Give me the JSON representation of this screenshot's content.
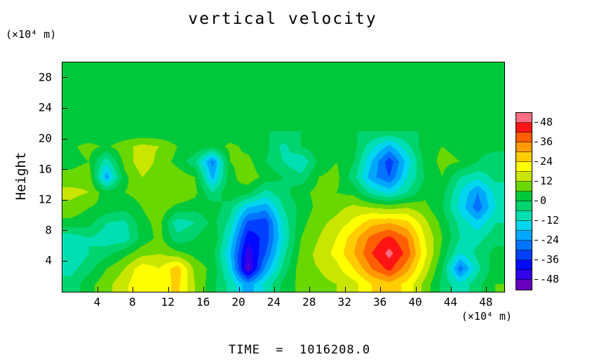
{
  "title": "vertical velocity",
  "time_label": "TIME  =  1016208.0",
  "y_axis": {
    "label": "Height",
    "unit": "(×10⁴ m)",
    "ticks": [
      4,
      8,
      12,
      16,
      20,
      24,
      28
    ],
    "range": [
      0,
      30
    ]
  },
  "x_axis": {
    "unit": "(×10⁴ m)",
    "ticks": [
      4,
      8,
      12,
      16,
      20,
      24,
      28,
      32,
      36,
      40,
      44,
      48
    ],
    "range": [
      0,
      50
    ]
  },
  "colorbar": {
    "ticks": [
      48,
      36,
      24,
      12,
      0,
      -12,
      -24,
      -36,
      -48
    ],
    "range": [
      -54,
      54
    ],
    "level_step": 6,
    "stops": [
      [
        -54,
        "#8200A0"
      ],
      [
        -48,
        "#5000DC"
      ],
      [
        -40,
        "#0000FF"
      ],
      [
        -30,
        "#005AFF"
      ],
      [
        -20,
        "#00AFFF"
      ],
      [
        -13,
        "#00E6E6"
      ],
      [
        -7,
        "#00DC96"
      ],
      [
        -2,
        "#00D264"
      ],
      [
        3,
        "#00C83C"
      ],
      [
        9,
        "#69D700"
      ],
      [
        15,
        "#C8E600"
      ],
      [
        21,
        "#FFFF00"
      ],
      [
        27,
        "#FFCD00"
      ],
      [
        33,
        "#FF9B00"
      ],
      [
        39,
        "#FF5F00"
      ],
      [
        45,
        "#FF1414"
      ],
      [
        51,
        "#FF6E82"
      ],
      [
        54,
        "#FAA5B9"
      ]
    ]
  },
  "chart_data": {
    "type": "heatmap",
    "title": "vertical velocity",
    "xlabel": "(×10⁴ m)",
    "ylabel": "Height (×10⁴ m)",
    "x_range": [
      0,
      50
    ],
    "height_range": [
      0,
      30
    ],
    "value_range": [
      -54,
      54
    ],
    "uniform_above_height": 20,
    "uniform_value": 0,
    "x": [
      1,
      3,
      5,
      7,
      9,
      11,
      13,
      15,
      17,
      19,
      21,
      23,
      25,
      27,
      29,
      31,
      33,
      35,
      37,
      39,
      41,
      43,
      45,
      47,
      49
    ],
    "height": [
      1,
      3,
      5,
      7,
      9,
      11,
      13,
      15,
      17,
      19
    ],
    "values": [
      [
        -4,
        4,
        10,
        16,
        24,
        20,
        26,
        12,
        2,
        -8,
        -22,
        -10,
        2,
        8,
        10,
        12,
        16,
        24,
        28,
        22,
        10,
        -2,
        -10,
        -2,
        6
      ],
      [
        -8,
        -2,
        6,
        12,
        22,
        18,
        28,
        10,
        4,
        -14,
        -50,
        -22,
        -4,
        10,
        12,
        16,
        24,
        36,
        44,
        32,
        16,
        0,
        -28,
        -8,
        4
      ],
      [
        -12,
        -6,
        -2,
        4,
        10,
        12,
        8,
        4,
        2,
        -18,
        -46,
        -30,
        -8,
        8,
        14,
        20,
        30,
        42,
        50,
        40,
        20,
        4,
        -12,
        -4,
        2
      ],
      [
        -10,
        -6,
        -10,
        -10,
        2,
        8,
        -4,
        0,
        6,
        -14,
        -40,
        -34,
        -12,
        6,
        12,
        18,
        28,
        38,
        44,
        36,
        18,
        6,
        -6,
        -8,
        -2
      ],
      [
        4,
        2,
        -6,
        -8,
        4,
        8,
        -10,
        -6,
        2,
        -8,
        -32,
        -34,
        -10,
        4,
        10,
        14,
        20,
        28,
        30,
        26,
        14,
        4,
        -8,
        -16,
        -6
      ],
      [
        10,
        6,
        4,
        2,
        6,
        10,
        4,
        2,
        4,
        -4,
        -18,
        -22,
        -6,
        2,
        8,
        10,
        14,
        12,
        10,
        12,
        8,
        0,
        -14,
        -28,
        -12
      ],
      [
        14,
        12,
        2,
        6,
        8,
        6,
        12,
        8,
        -6,
        6,
        2,
        -8,
        -2,
        4,
        8,
        6,
        4,
        -8,
        -14,
        -6,
        4,
        2,
        -12,
        -24,
        -10
      ],
      [
        8,
        10,
        -22,
        4,
        12,
        8,
        10,
        6,
        -20,
        4,
        10,
        4,
        0,
        -4,
        6,
        8,
        -4,
        -22,
        -30,
        -12,
        0,
        6,
        -6,
        -10,
        -4
      ],
      [
        4,
        6,
        -10,
        8,
        16,
        10,
        4,
        -4,
        -26,
        6,
        8,
        0,
        -6,
        -12,
        2,
        6,
        0,
        -18,
        -34,
        -16,
        2,
        8,
        6,
        0,
        -4
      ],
      [
        5,
        8,
        5,
        10,
        14,
        12,
        6,
        4,
        2,
        8,
        4,
        2,
        -8,
        0,
        4,
        4,
        2,
        -10,
        -20,
        -8,
        4,
        6,
        4,
        2,
        2
      ]
    ]
  }
}
